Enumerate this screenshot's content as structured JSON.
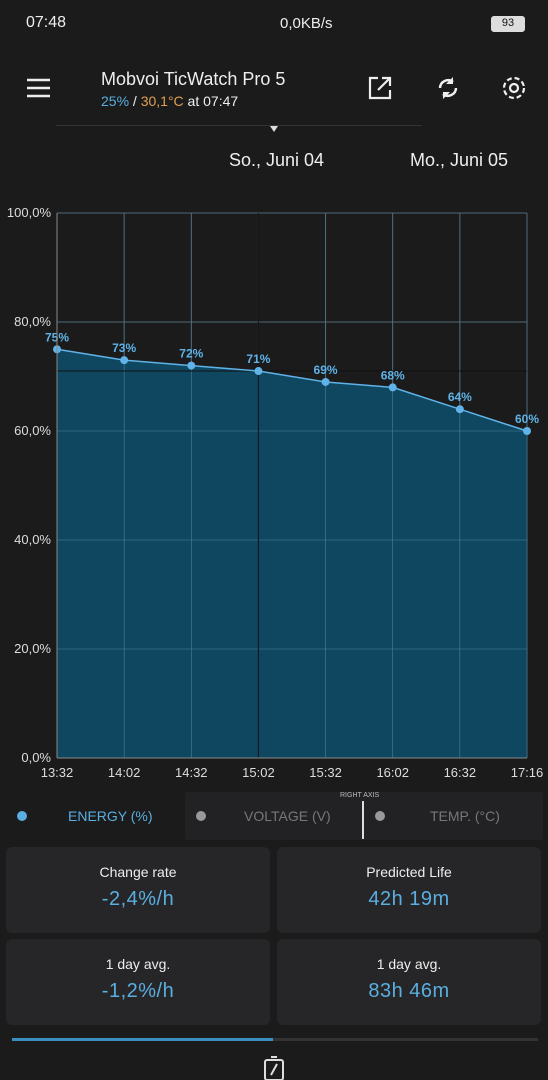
{
  "status_bar": {
    "time": "07:48",
    "speed": "0,0KB/s",
    "battery": "93"
  },
  "header": {
    "title": "Mobvoi TicWatch Pro 5",
    "charge": "25%",
    "separator": " / ",
    "temperature": "30,1°C",
    "updated": " at 07:47"
  },
  "dates": [
    "So., Juni 04",
    "Mo., Juni 05"
  ],
  "chart": {
    "type": "line",
    "categories": [
      "13:32",
      "14:02",
      "14:32",
      "15:02",
      "15:32",
      "16:02",
      "16:32",
      "17:16"
    ],
    "values": [
      75,
      73,
      72,
      71,
      69,
      68,
      64,
      60
    ],
    "value_labels": [
      "75%",
      "73%",
      "72%",
      "71%",
      "69%",
      "68%",
      "64%",
      "60%"
    ],
    "color": "#5fb3e8",
    "ylim": [
      0,
      100
    ],
    "yticks": [
      {
        "value": 0,
        "label": "0,0%"
      },
      {
        "value": 20,
        "label": "20,0%"
      },
      {
        "value": 40,
        "label": "40,0%"
      },
      {
        "value": 60,
        "label": "60,0%"
      },
      {
        "value": 80,
        "label": "80,0%"
      },
      {
        "value": 100,
        "label": "100,0%"
      }
    ],
    "grid": true
  },
  "legend": {
    "energy": "ENERGY (%)",
    "voltage": "VOLTAGE (V)",
    "right_axis": "RIGHT AXIS",
    "temp": "TEMP. (°C)"
  },
  "stats": [
    {
      "label": "Change rate",
      "value": "-2,4%/h"
    },
    {
      "label": "Predicted Life",
      "value": "42h 19m"
    },
    {
      "label": "1 day avg.",
      "value": "-1,2%/h"
    },
    {
      "label": "1 day avg.",
      "value": "83h 46m"
    }
  ]
}
